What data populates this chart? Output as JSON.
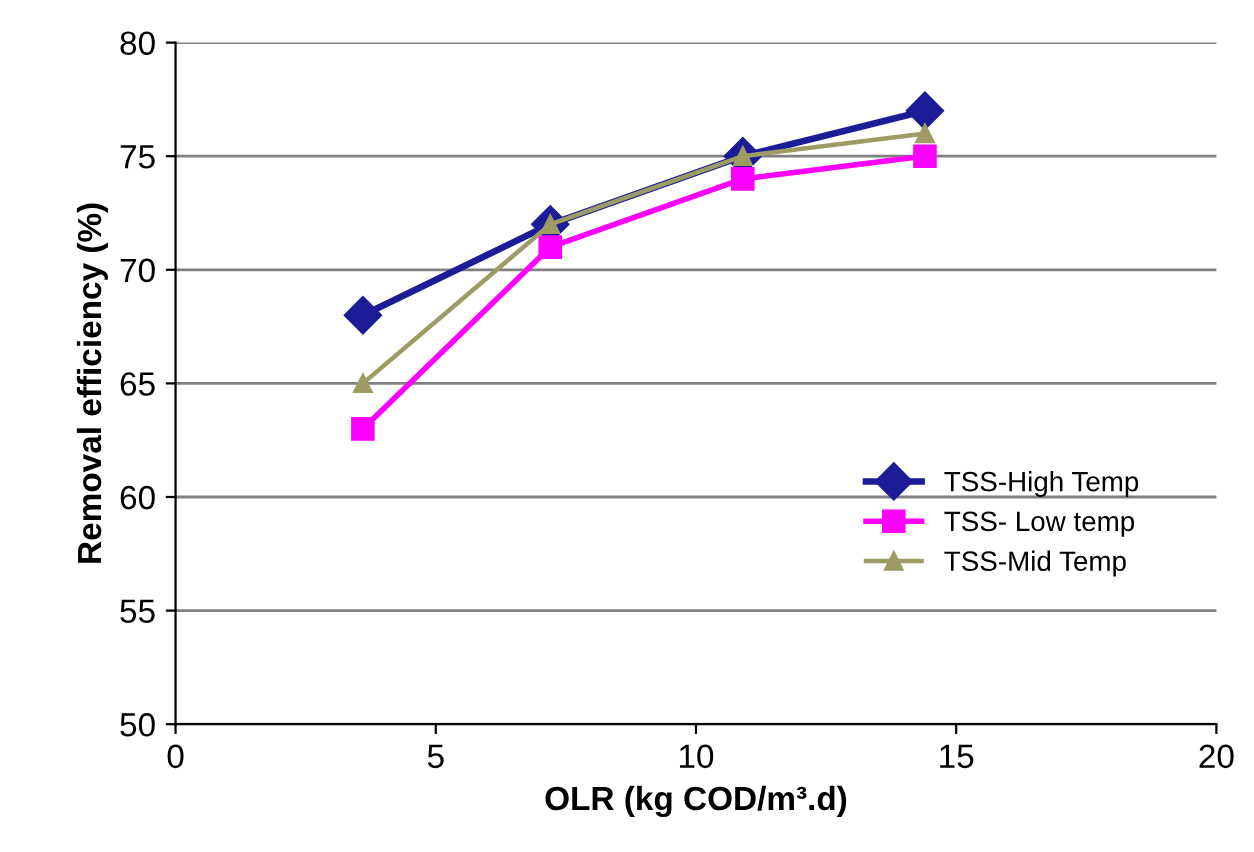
{
  "chart_data": {
    "type": "line",
    "xlabel": "OLR (kg COD/m³.d)",
    "ylabel": "Removal efficiency (%)",
    "xlim": [
      0,
      20
    ],
    "xticks": [
      0,
      5,
      10,
      15,
      20
    ],
    "ylim": [
      50,
      80
    ],
    "yticks": [
      50,
      55,
      60,
      65,
      70,
      75,
      80
    ],
    "grid": "y",
    "legend": "bottom right",
    "series": [
      {
        "name": "TSS-High Temp",
        "color": "#1c1c96",
        "marker": "diamond",
        "x": [
          3.6,
          7.2,
          10.9,
          14.4
        ],
        "values": [
          68,
          72,
          75,
          77
        ]
      },
      {
        "name": "TSS- Low temp",
        "color": "#ff00ff",
        "marker": "square",
        "x": [
          3.6,
          7.2,
          10.9,
          14.4
        ],
        "values": [
          63,
          71,
          74,
          75
        ]
      },
      {
        "name": "TSS-Mid Temp",
        "color": "#9c9c64",
        "marker": "triangle",
        "x": [
          3.6,
          7.2,
          10.9,
          14.4
        ],
        "values": [
          65,
          72,
          75,
          76
        ]
      }
    ]
  }
}
